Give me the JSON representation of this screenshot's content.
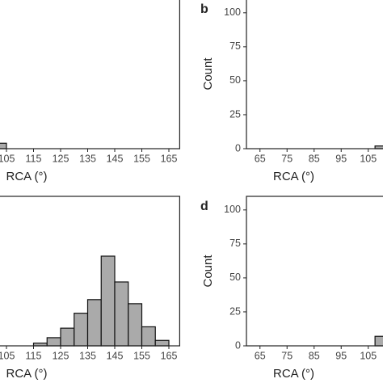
{
  "chart_data": [
    {
      "type": "histogram",
      "xlabel": "RCA (°)",
      "bins": [
        100,
        105
      ],
      "values": [
        4
      ],
      "color": "#aaaaaa",
      "xlim": [
        95,
        169
      ],
      "ylim": [
        0,
        110
      ],
      "xticks": [
        105,
        115,
        125,
        135,
        145,
        155,
        165
      ]
    },
    {
      "type": "histogram",
      "label": "b",
      "xlabel": "RCA (°)",
      "ylabel": "Count",
      "bins": [
        107.5,
        112.5
      ],
      "values": [
        2
      ],
      "color": "#aaaaaa",
      "xlim": [
        60,
        180
      ],
      "ylim": [
        0,
        110
      ],
      "xticks": [
        65,
        75,
        85,
        95,
        105
      ],
      "yticks": [
        0,
        25,
        50,
        75,
        100
      ]
    },
    {
      "type": "histogram",
      "xlabel": "RCA (°)",
      "bins": [
        115,
        120,
        125,
        130,
        135,
        140,
        145,
        150,
        155,
        160,
        165
      ],
      "values": [
        2,
        6,
        13,
        24,
        34,
        66,
        47,
        31,
        14,
        4
      ],
      "color": "#aaaaaa",
      "xlim": [
        95,
        169
      ],
      "ylim": [
        0,
        110
      ],
      "xticks": [
        105,
        115,
        125,
        135,
        145,
        155,
        165
      ]
    },
    {
      "type": "histogram",
      "label": "d",
      "xlabel": "RCA (°)",
      "ylabel": "Count",
      "bins": [
        107.5,
        112.5
      ],
      "values": [
        7
      ],
      "color": "#aaaaaa",
      "xlim": [
        60,
        180
      ],
      "ylim": [
        0,
        110
      ],
      "xticks": [
        65,
        75,
        85,
        95,
        105
      ],
      "yticks": [
        0,
        25,
        50,
        75,
        100
      ]
    }
  ]
}
